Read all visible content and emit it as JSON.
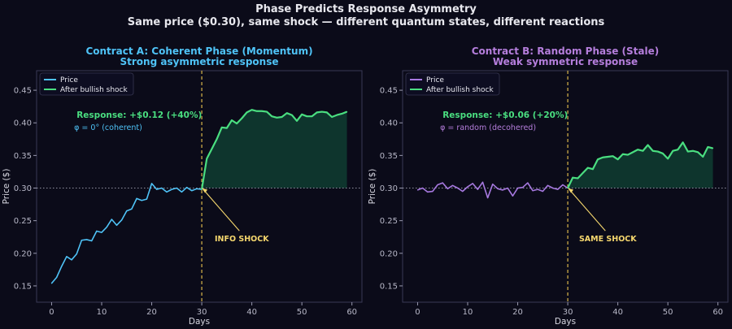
{
  "figure": {
    "title": "Phase Predicts Response Asymmetry",
    "subtitle": "Same price ($0.30), same shock — different quantum states, different reactions"
  },
  "colors": {
    "background": "#0b0b19",
    "axes_bg": "#0b0b19",
    "spine": "#3a3a55",
    "text": "#e8e8ee",
    "shock_line": "#d9b64a",
    "annotation": "#f5d76e",
    "after": "#4ade80",
    "fill": "#0e3a30",
    "baseline": "#9090a0"
  },
  "chart_data": [
    {
      "type": "line",
      "title": "Contract A: Coherent Phase (Momentum)",
      "subtitle": "Strong asymmetric response",
      "title_color": "#4fc3f7",
      "xlabel": "Days",
      "ylabel": "Price ($)",
      "xlim": [
        -3,
        62
      ],
      "ylim": [
        0.125,
        0.48
      ],
      "xticks": [
        0,
        10,
        20,
        30,
        40,
        50,
        60
      ],
      "xtick_labels": [
        "0",
        "10",
        "20",
        "30",
        "40",
        "50",
        "60"
      ],
      "yticks": [
        0.15,
        0.2,
        0.25,
        0.3,
        0.35,
        0.4,
        0.45
      ],
      "ytick_labels": [
        "0.15",
        "0.20",
        "0.25",
        "0.30",
        "0.35",
        "0.40",
        "0.45"
      ],
      "shock_day": 30,
      "baseline": 0.3,
      "legend": [
        "Price",
        "After bullish shock"
      ],
      "legend_position": "top-left",
      "response_text": "Response: +$0.12 (+40%)",
      "phase_text": "φ = 0° (coherent)",
      "annotation_text": "INFO SHOCK",
      "annotation_xy": [
        30,
        0.3
      ],
      "annotation_text_xy": [
        38,
        0.222
      ],
      "series": [
        {
          "name": "Price",
          "color": "#4fc3f7",
          "x": [
            0,
            1,
            2,
            3,
            4,
            5,
            6,
            7,
            8,
            9,
            10,
            11,
            12,
            13,
            14,
            15,
            16,
            17,
            18,
            19,
            20,
            21,
            22,
            23,
            24,
            25,
            26,
            27,
            28,
            29,
            30
          ],
          "values": [
            0.154,
            0.163,
            0.18,
            0.195,
            0.19,
            0.199,
            0.22,
            0.221,
            0.219,
            0.234,
            0.232,
            0.24,
            0.252,
            0.243,
            0.251,
            0.265,
            0.268,
            0.284,
            0.281,
            0.283,
            0.307,
            0.298,
            0.3,
            0.294,
            0.298,
            0.3,
            0.294,
            0.301,
            0.296,
            0.299,
            0.298
          ]
        },
        {
          "name": "After bullish shock",
          "color": "#4ade80",
          "x": [
            30,
            31,
            32,
            33,
            34,
            35,
            36,
            37,
            38,
            39,
            40,
            41,
            42,
            43,
            44,
            45,
            46,
            47,
            48,
            49,
            50,
            51,
            52,
            53,
            54,
            55,
            56,
            57,
            58,
            59
          ],
          "values": [
            0.298,
            0.345,
            0.36,
            0.375,
            0.393,
            0.392,
            0.404,
            0.399,
            0.407,
            0.416,
            0.42,
            0.418,
            0.418,
            0.417,
            0.41,
            0.408,
            0.409,
            0.415,
            0.412,
            0.403,
            0.413,
            0.41,
            0.41,
            0.416,
            0.417,
            0.416,
            0.409,
            0.412,
            0.414,
            0.417
          ]
        }
      ]
    },
    {
      "type": "line",
      "title": "Contract B: Random Phase (Stale)",
      "subtitle": "Weak symmetric response",
      "title_color": "#b57edc",
      "xlabel": "Days",
      "ylabel": "Price ($)",
      "xlim": [
        -3,
        62
      ],
      "ylim": [
        0.125,
        0.48
      ],
      "xticks": [
        0,
        10,
        20,
        30,
        40,
        50,
        60
      ],
      "xtick_labels": [
        "0",
        "10",
        "20",
        "30",
        "40",
        "50",
        "60"
      ],
      "yticks": [
        0.15,
        0.2,
        0.25,
        0.3,
        0.35,
        0.4,
        0.45
      ],
      "ytick_labels": [
        "0.15",
        "0.20",
        "0.25",
        "0.30",
        "0.35",
        "0.40",
        "0.45"
      ],
      "shock_day": 30,
      "baseline": 0.3,
      "legend": [
        "Price",
        "After bullish shock"
      ],
      "legend_position": "top-left",
      "response_text": "Response: +$0.06 (+20%)",
      "phase_text": "φ = random (decohered)",
      "annotation_text": "SAME SHOCK",
      "annotation_xy": [
        30,
        0.3
      ],
      "annotation_text_xy": [
        38,
        0.222
      ],
      "series": [
        {
          "name": "Price",
          "color": "#a779e0",
          "x": [
            0,
            1,
            2,
            3,
            4,
            5,
            6,
            7,
            8,
            9,
            10,
            11,
            12,
            13,
            14,
            15,
            16,
            17,
            18,
            19,
            20,
            21,
            22,
            23,
            24,
            25,
            26,
            27,
            28,
            29,
            30
          ],
          "values": [
            0.297,
            0.3,
            0.294,
            0.295,
            0.305,
            0.308,
            0.299,
            0.304,
            0.3,
            0.295,
            0.302,
            0.307,
            0.298,
            0.309,
            0.285,
            0.306,
            0.299,
            0.297,
            0.3,
            0.288,
            0.3,
            0.301,
            0.308,
            0.296,
            0.298,
            0.295,
            0.304,
            0.3,
            0.298,
            0.305,
            0.3
          ]
        },
        {
          "name": "After bullish shock",
          "color": "#4ade80",
          "x": [
            30,
            31,
            32,
            33,
            34,
            35,
            36,
            37,
            38,
            39,
            40,
            41,
            42,
            43,
            44,
            45,
            46,
            47,
            48,
            49,
            50,
            51,
            52,
            53,
            54,
            55,
            56,
            57,
            58,
            59
          ],
          "values": [
            0.3,
            0.316,
            0.315,
            0.323,
            0.331,
            0.329,
            0.344,
            0.347,
            0.348,
            0.349,
            0.344,
            0.352,
            0.351,
            0.355,
            0.359,
            0.357,
            0.366,
            0.357,
            0.356,
            0.353,
            0.345,
            0.357,
            0.359,
            0.37,
            0.356,
            0.357,
            0.355,
            0.348,
            0.363,
            0.361
          ]
        }
      ]
    }
  ]
}
